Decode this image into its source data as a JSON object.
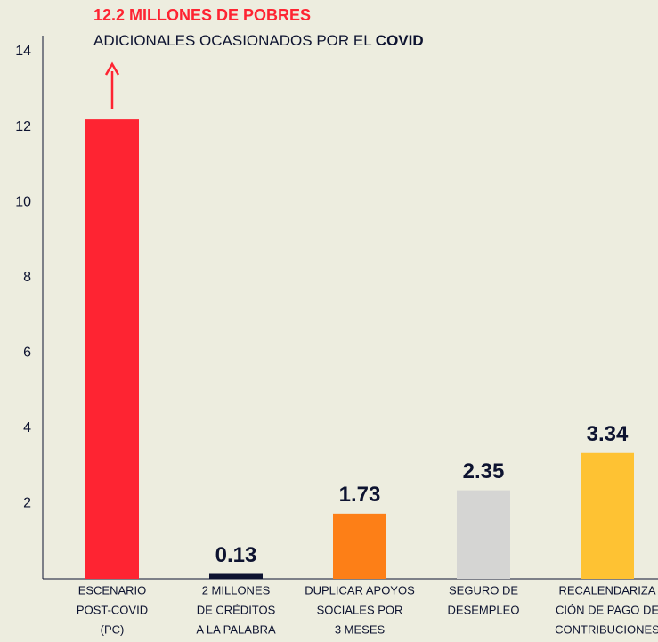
{
  "chart_data": {
    "type": "bar",
    "title": "12.2 MILLONES DE POBRES",
    "subtitle": [
      "ADICIONALES OCASIONADOS POR EL ",
      "COVID"
    ],
    "categories": [
      [
        "ESCENARIO",
        "POST-COVID",
        "(PC)"
      ],
      [
        "2 MILLONES",
        "DE CRÉDITOS",
        "A LA PALABRA"
      ],
      [
        "DUPLICAR APOYOS",
        "SOCIALES POR",
        "3 MESES"
      ],
      [
        "SEGURO DE",
        "DESEMPLEO"
      ],
      [
        "RECALENDARIZA",
        "CIÓN DE PAGO DE",
        "CONTRIBUCIONES"
      ]
    ],
    "values": [
      12.2,
      0.13,
      1.73,
      2.35,
      3.34
    ],
    "value_labels": [
      null,
      "0.13",
      "1.73",
      "2.35",
      "3.34"
    ],
    "colors": [
      "#fe2432",
      "#0d1330",
      "#fd7f17",
      "#d5d5d3",
      "#fec233"
    ],
    "ylim": [
      0,
      14
    ],
    "yticks": [
      2,
      4,
      6,
      8,
      10,
      12,
      14
    ],
    "grid": false
  }
}
